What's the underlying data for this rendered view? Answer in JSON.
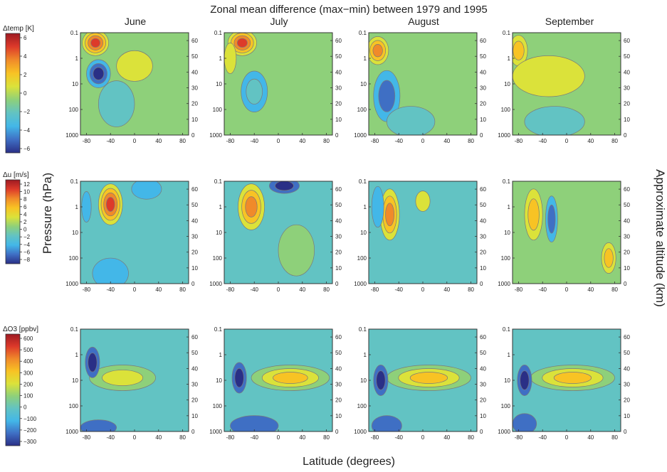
{
  "figure": {
    "title": "Zonal mean difference (max−min) between 1979 and 1995",
    "xlabel": "Latitude (degrees)",
    "ylabel": "Pressure (hPa)",
    "ylabel_right": "Approximate altitude (km)",
    "months": [
      "June",
      "July",
      "August",
      "September"
    ]
  },
  "chart_data": {
    "type": "heatmap",
    "title": "Zonal mean difference (max−min) between 1979 and 1995",
    "columns": [
      "June",
      "July",
      "August",
      "September"
    ],
    "rows": [
      {
        "variable": "Δtemp [K]",
        "colorbar_ticks": [
          "6",
          "4",
          "2",
          "0",
          "−2",
          "−4",
          "−6"
        ],
        "colorbar_range": [
          -6,
          6
        ]
      },
      {
        "variable": "Δu [m/s]",
        "colorbar_ticks": [
          "12",
          "10",
          "8",
          "6",
          "4",
          "2",
          "0",
          "−2",
          "−4",
          "−6",
          "−8"
        ],
        "colorbar_range": [
          -9,
          12
        ]
      },
      {
        "variable": "ΔO3 [ppbv]",
        "colorbar_ticks": [
          "600",
          "500",
          "400",
          "300",
          "200",
          "100",
          "0",
          "−100",
          "−200",
          "−300"
        ],
        "colorbar_range": [
          -300,
          700
        ]
      }
    ],
    "xlabel": "Latitude (degrees)",
    "x_ticks": [
      "-80",
      "-40",
      "0",
      "40",
      "80"
    ],
    "xlim": [
      -90,
      90
    ],
    "ylabel": "Pressure (hPa)",
    "y_ticks": [
      "0.1",
      "1",
      "10",
      "100",
      "1000"
    ],
    "ylim": [
      1000,
      0.1
    ],
    "y_scale": "log",
    "ylabel_right": "Approximate altitude (km)",
    "y2_ticks": [
      "0",
      "10",
      "20",
      "30",
      "40",
      "50",
      "60"
    ],
    "colormap": [
      "#2a2f86",
      "#3f6fc4",
      "#43b7e8",
      "#62c3c3",
      "#8ed07a",
      "#dbe23a",
      "#f8c324",
      "#f08a2a",
      "#dd3a2a",
      "#9e1a22"
    ]
  }
}
